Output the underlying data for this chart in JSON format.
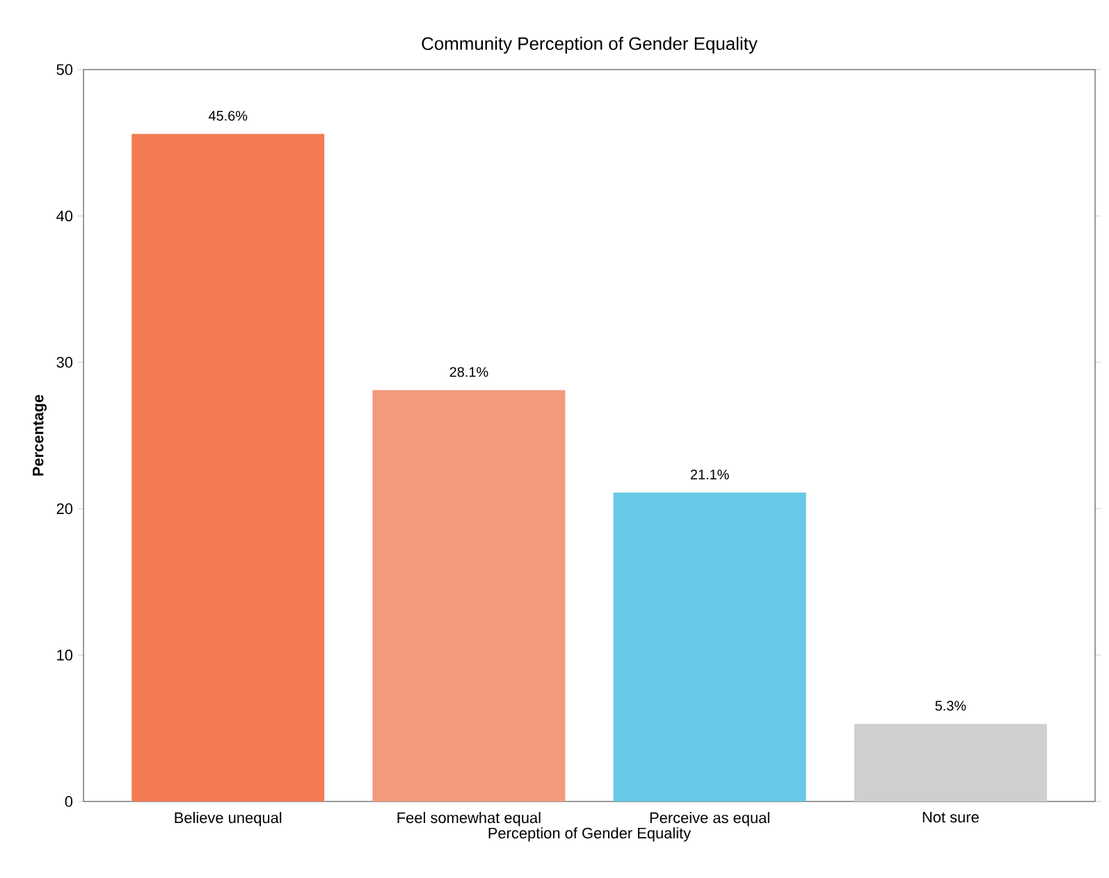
{
  "chart_data": {
    "type": "bar",
    "title": "Community Perception of Gender Equality",
    "xlabel": "Perception of Gender Equality",
    "ylabel": "Percentage",
    "categories": [
      "Believe unequal",
      "Feel somewhat equal",
      "Perceive as equal",
      "Not sure"
    ],
    "values": [
      45.6,
      28.1,
      21.1,
      5.3
    ],
    "colors": [
      "#f27b52",
      "#f29b7c",
      "#68c9e6",
      "#cfcfcf"
    ],
    "value_labels": [
      "45.6%",
      "28.1%",
      "21.1%",
      "5.3%"
    ],
    "ylim": [
      0,
      50
    ],
    "yticks": [
      0,
      10,
      20,
      30,
      40,
      50
    ],
    "grid": false
  }
}
